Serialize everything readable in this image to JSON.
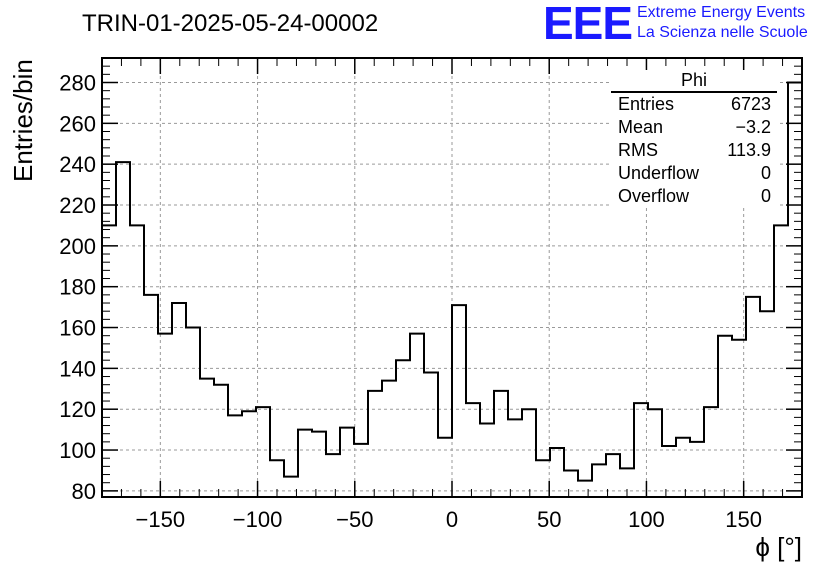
{
  "header": {
    "title": "TRIN-01-2025-05-24-00002",
    "logo": "EEE",
    "logo_line1": "Extreme Energy Events",
    "logo_line2": "La Scienza nelle Scuole"
  },
  "stats_box": {
    "name": "Phi",
    "rows": [
      {
        "label": "Entries",
        "value": "6723"
      },
      {
        "label": "Mean",
        "value": "−3.2"
      },
      {
        "label": "RMS",
        "value": "113.9"
      },
      {
        "label": "Underflow",
        "value": "0"
      },
      {
        "label": "Overflow",
        "value": "0"
      }
    ]
  },
  "chart_data": {
    "type": "histogram",
    "title": "TRIN-01-2025-05-24-00002",
    "xlabel": "ϕ [°]",
    "ylabel": "Entries/bin",
    "xlim": [
      -180,
      180
    ],
    "ylim": [
      77,
      292
    ],
    "bin_width": 7.2,
    "x_ticks": [
      -150,
      -100,
      -50,
      0,
      50,
      100,
      150
    ],
    "x_tick_labels": [
      "−150",
      "−100",
      "−50",
      "0",
      "50",
      "100",
      "150"
    ],
    "y_ticks": [
      80,
      100,
      120,
      140,
      160,
      180,
      200,
      220,
      240,
      260,
      280
    ],
    "grid": true,
    "line_color": "#000000",
    "values": [
      210,
      241,
      210,
      176,
      157,
      172,
      160,
      135,
      132,
      117,
      119,
      121,
      95,
      87,
      110,
      109,
      98,
      111,
      103,
      129,
      134,
      144,
      157,
      138,
      106,
      171,
      123,
      113,
      129,
      115,
      120,
      95,
      101,
      90,
      85,
      93,
      98,
      91,
      123,
      120,
      102,
      106,
      104,
      121,
      156,
      154,
      175,
      168,
      210,
      280
    ]
  }
}
